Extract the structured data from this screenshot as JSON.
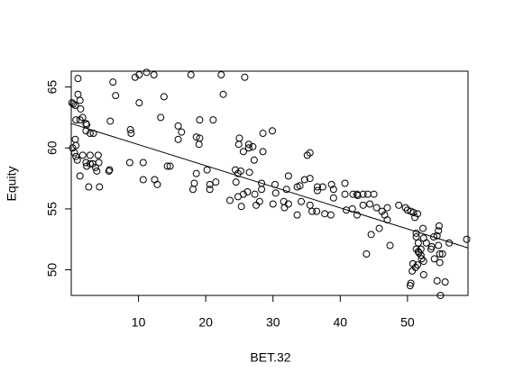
{
  "chart_data": {
    "type": "scatter",
    "xlabel": "BET.32",
    "ylabel": "Equity",
    "xlim": [
      0,
      59
    ],
    "ylim": [
      47.9,
      66.3
    ],
    "xticks": [
      10,
      20,
      30,
      40,
      50
    ],
    "yticks": [
      50,
      55,
      60,
      65
    ],
    "color": "#000000",
    "fit_line": {
      "x": [
        0,
        59
      ],
      "y": [
        62.0,
        51.8
      ]
    },
    "x": [
      0.1,
      0.3,
      0.6,
      1.0,
      1.0,
      1.3,
      1.4,
      1.7,
      0.7,
      1.3,
      2.2,
      2.3,
      2.2,
      2.8,
      3.3,
      0.6,
      0.7,
      0.2,
      0.5,
      0.7,
      0.9,
      1.7,
      2.2,
      2.3,
      2.8,
      3.2,
      2.8,
      4.0,
      3.6,
      4.1,
      3.8,
      2.6,
      4.2,
      1.3,
      5.7,
      5.6,
      5.8,
      6.2,
      6.6,
      9.5,
      10.1,
      12.3,
      11.2,
      13.8,
      13.3,
      10.1,
      8.8,
      8.9,
      8.7,
      10.7,
      10.7,
      12.4,
      12.8,
      14.3,
      14.7,
      15.9,
      16.4,
      15.9,
      17.8,
      18.6,
      19.0,
      19.1,
      19.1,
      21.1,
      22.3,
      22.6,
      25.8,
      24.9,
      25.6,
      26.4,
      26.4,
      27.0,
      27.2,
      26.5,
      28.5,
      29.9,
      28.5,
      25.0,
      24.4,
      24.8,
      25.2,
      24.5,
      25.6,
      26.2,
      27.3,
      28.3,
      28.3,
      30.3,
      30.4,
      32.0,
      32.3,
      31.6,
      33.6,
      34.0,
      35.1,
      35.5,
      34.7,
      35.5,
      36.6,
      36.6,
      37.4,
      38.7,
      39.0,
      40.7,
      41.9,
      42.5,
      43.4,
      44.1,
      44.4,
      45.0,
      45.4,
      47.0,
      46.2,
      46.6,
      47.0,
      48.7,
      49.7,
      50.0,
      50.5,
      50.9,
      51.1,
      51.5,
      51.3,
      51.3,
      51.6,
      51.3,
      51.6,
      52.0,
      51.7,
      52.0,
      52.1,
      52.4,
      52.3,
      52.4,
      52.8,
      53.5,
      53.6,
      53.9,
      54.0,
      54.6,
      54.7,
      54.4,
      54.6,
      54.8,
      54.8,
      55.2,
      54.4,
      54.9,
      55.6,
      56.2,
      58.8,
      51.5,
      50.8,
      50.5,
      50.4,
      52.4,
      50.7,
      51.2,
      45.8,
      44.6,
      43.9,
      47.4,
      40.9,
      41.8,
      37.7,
      38.6,
      36.5,
      33.6,
      34.2,
      31.7,
      30.0,
      28.0,
      27.5,
      25.3,
      23.6,
      21.5,
      20.6,
      20.6,
      18.6,
      18.3,
      18.1,
      20.2,
      24.8,
      39.0,
      40.7,
      42.6,
      43.4,
      42.5,
      35.5,
      32.3,
      35.8
    ],
    "values": [
      63.7,
      63.6,
      63.5,
      65.7,
      64.4,
      63.9,
      63.2,
      62.5,
      62.3,
      62.3,
      62.0,
      61.9,
      61.4,
      61.2,
      61.2,
      60.7,
      60.2,
      60.0,
      59.6,
      59.3,
      59.0,
      59.4,
      58.8,
      58.5,
      58.7,
      58.7,
      59.4,
      59.4,
      58.4,
      58.8,
      58.1,
      56.8,
      56.8,
      57.7,
      58.2,
      58.1,
      62.2,
      65.4,
      64.3,
      65.8,
      66.0,
      66.0,
      66.2,
      64.2,
      62.5,
      63.7,
      61.5,
      61.2,
      58.8,
      58.8,
      57.4,
      57.4,
      57.0,
      58.5,
      58.5,
      61.8,
      61.3,
      60.7,
      66.0,
      60.9,
      60.3,
      62.3,
      60.8,
      62.3,
      66.0,
      64.4,
      65.8,
      60.3,
      59.7,
      60.0,
      60.3,
      60.1,
      59.0,
      58.0,
      61.2,
      61.4,
      59.7,
      60.8,
      58.2,
      57.9,
      58.1,
      57.2,
      56.2,
      56.4,
      56.2,
      56.6,
      57.1,
      57.0,
      56.3,
      56.6,
      57.7,
      55.6,
      56.8,
      56.9,
      59.4,
      59.6,
      57.4,
      57.5,
      56.8,
      56.5,
      56.8,
      57.0,
      56.6,
      57.1,
      56.2,
      56.2,
      56.2,
      56.2,
      55.4,
      56.2,
      55.1,
      55.1,
      54.8,
      54.5,
      54.1,
      55.3,
      55.1,
      54.9,
      54.8,
      54.7,
      54.3,
      54.6,
      53.0,
      52.7,
      52.2,
      51.7,
      51.5,
      51.7,
      51.4,
      51.2,
      50.9,
      50.7,
      53.4,
      52.6,
      52.2,
      51.7,
      51.9,
      52.7,
      50.9,
      52.0,
      53.6,
      52.8,
      53.2,
      51.3,
      50.6,
      51.3,
      49.1,
      47.9,
      49.0,
      52.2,
      52.5,
      50.4,
      50.5,
      48.9,
      48.7,
      49.6,
      49.9,
      50.2,
      53.4,
      52.9,
      51.3,
      52.0,
      54.9,
      55.0,
      54.6,
      54.5,
      54.8,
      54.5,
      55.6,
      55.1,
      55.4,
      55.6,
      55.3,
      55.2,
      55.7,
      57.2,
      57.0,
      56.6,
      57.9,
      57.1,
      56.6,
      58.2,
      56.0,
      55.9,
      56.2,
      56.1,
      55.3,
      54.5,
      55.3,
      55.4,
      54.8
    ]
  }
}
